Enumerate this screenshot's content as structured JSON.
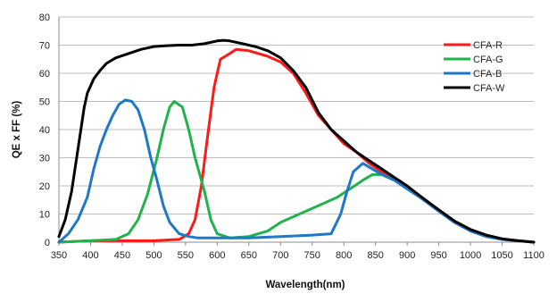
{
  "chart_data": {
    "type": "line",
    "title": "",
    "xlabel": "Wavelength(nm)",
    "ylabel": "QE x FF (%)",
    "xlim": [
      350,
      1100
    ],
    "ylim": [
      0,
      80
    ],
    "x_ticks": [
      350,
      400,
      450,
      500,
      550,
      600,
      650,
      700,
      750,
      800,
      850,
      900,
      950,
      1000,
      1050,
      1100
    ],
    "y_ticks": [
      0,
      10,
      20,
      30,
      40,
      50,
      60,
      70,
      80
    ],
    "grid": "horizontal",
    "legend_position": "top-right",
    "series": [
      {
        "name": "CFA-R",
        "color": "#ff1a1a",
        "points": [
          [
            350,
            0
          ],
          [
            400,
            0.5
          ],
          [
            450,
            0.5
          ],
          [
            500,
            0.5
          ],
          [
            540,
            1
          ],
          [
            555,
            3
          ],
          [
            565,
            8
          ],
          [
            575,
            20
          ],
          [
            585,
            38
          ],
          [
            595,
            55
          ],
          [
            605,
            65
          ],
          [
            620,
            67
          ],
          [
            630,
            68.5
          ],
          [
            650,
            68
          ],
          [
            680,
            66
          ],
          [
            700,
            64
          ],
          [
            720,
            60
          ],
          [
            740,
            53
          ],
          [
            760,
            45
          ],
          [
            780,
            40
          ],
          [
            800,
            35
          ],
          [
            820,
            32
          ],
          [
            840,
            28
          ],
          [
            860,
            25
          ],
          [
            880,
            22
          ],
          [
            900,
            19
          ],
          [
            920,
            16
          ],
          [
            950,
            11
          ],
          [
            975,
            7
          ],
          [
            1000,
            4
          ],
          [
            1025,
            2
          ],
          [
            1050,
            1
          ],
          [
            1075,
            0.5
          ],
          [
            1100,
            0
          ]
        ]
      },
      {
        "name": "CFA-G",
        "color": "#22b24c",
        "points": [
          [
            350,
            0
          ],
          [
            400,
            0.5
          ],
          [
            440,
            1
          ],
          [
            460,
            3
          ],
          [
            475,
            8
          ],
          [
            490,
            17
          ],
          [
            505,
            30
          ],
          [
            515,
            40
          ],
          [
            525,
            48
          ],
          [
            532,
            50
          ],
          [
            545,
            48
          ],
          [
            555,
            40
          ],
          [
            565,
            30
          ],
          [
            580,
            18
          ],
          [
            590,
            8
          ],
          [
            600,
            3
          ],
          [
            620,
            1.5
          ],
          [
            650,
            2
          ],
          [
            680,
            4
          ],
          [
            700,
            7
          ],
          [
            730,
            10
          ],
          [
            760,
            13
          ],
          [
            790,
            16
          ],
          [
            810,
            19
          ],
          [
            830,
            22
          ],
          [
            845,
            24
          ],
          [
            860,
            24
          ],
          [
            880,
            22
          ],
          [
            900,
            19
          ],
          [
            920,
            16
          ],
          [
            950,
            11
          ],
          [
            975,
            7
          ],
          [
            1000,
            4
          ],
          [
            1025,
            2
          ],
          [
            1050,
            1
          ],
          [
            1075,
            0.5
          ],
          [
            1100,
            0
          ]
        ]
      },
      {
        "name": "CFA-B",
        "color": "#1f77c8",
        "points": [
          [
            350,
            0
          ],
          [
            365,
            3
          ],
          [
            380,
            8
          ],
          [
            395,
            16
          ],
          [
            405,
            26
          ],
          [
            415,
            34
          ],
          [
            425,
            40
          ],
          [
            435,
            45
          ],
          [
            445,
            49
          ],
          [
            455,
            50.5
          ],
          [
            465,
            50
          ],
          [
            475,
            47
          ],
          [
            485,
            40
          ],
          [
            495,
            30
          ],
          [
            505,
            22
          ],
          [
            515,
            13
          ],
          [
            525,
            7
          ],
          [
            540,
            3
          ],
          [
            555,
            2
          ],
          [
            570,
            1.5
          ],
          [
            600,
            1.5
          ],
          [
            650,
            1.5
          ],
          [
            700,
            2
          ],
          [
            750,
            2.5
          ],
          [
            780,
            3
          ],
          [
            795,
            10
          ],
          [
            805,
            18
          ],
          [
            815,
            25
          ],
          [
            830,
            28
          ],
          [
            845,
            26
          ],
          [
            860,
            24
          ],
          [
            880,
            22
          ],
          [
            900,
            19
          ],
          [
            920,
            16
          ],
          [
            950,
            11
          ],
          [
            975,
            7
          ],
          [
            1000,
            4
          ],
          [
            1025,
            2
          ],
          [
            1050,
            1
          ],
          [
            1075,
            0.5
          ],
          [
            1100,
            0
          ]
        ]
      },
      {
        "name": "CFA-W",
        "color": "#000000",
        "points": [
          [
            350,
            2
          ],
          [
            360,
            8
          ],
          [
            370,
            18
          ],
          [
            380,
            33
          ],
          [
            390,
            48
          ],
          [
            395,
            53
          ],
          [
            405,
            58
          ],
          [
            415,
            61
          ],
          [
            425,
            63.5
          ],
          [
            440,
            65.5
          ],
          [
            460,
            67
          ],
          [
            480,
            68.5
          ],
          [
            500,
            69.5
          ],
          [
            520,
            69.8
          ],
          [
            540,
            70
          ],
          [
            560,
            70
          ],
          [
            580,
            70.5
          ],
          [
            600,
            71.5
          ],
          [
            610,
            71.7
          ],
          [
            620,
            71.5
          ],
          [
            640,
            70.5
          ],
          [
            660,
            69.5
          ],
          [
            680,
            68
          ],
          [
            700,
            65.5
          ],
          [
            720,
            61
          ],
          [
            740,
            55
          ],
          [
            760,
            46
          ],
          [
            780,
            40
          ],
          [
            800,
            36
          ],
          [
            820,
            32
          ],
          [
            840,
            29
          ],
          [
            860,
            26
          ],
          [
            880,
            23
          ],
          [
            900,
            20
          ],
          [
            920,
            16.5
          ],
          [
            950,
            11.5
          ],
          [
            975,
            7.5
          ],
          [
            1000,
            4.5
          ],
          [
            1025,
            2.5
          ],
          [
            1050,
            1.2
          ],
          [
            1075,
            0.5
          ],
          [
            1100,
            0
          ]
        ]
      }
    ]
  }
}
